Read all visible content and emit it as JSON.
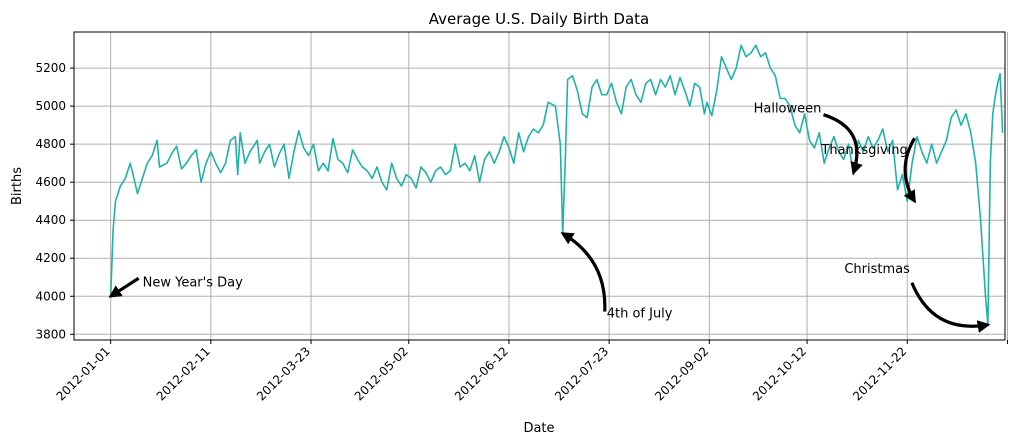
{
  "chart_data": {
    "type": "line",
    "title": "Average U.S. Daily Birth Data",
    "xlabel": "Date",
    "ylabel": "Births",
    "x_range": [
      "2011-12-17",
      "2013-01-01"
    ],
    "ylim": [
      3770,
      5390
    ],
    "grid": true,
    "line_color": "#20b2aa",
    "x_ticks": [
      "2012-01-01",
      "2012-02-11",
      "2012-03-23",
      "2012-05-02",
      "2012-06-12",
      "2012-07-23",
      "2012-09-02",
      "2012-10-12",
      "2012-11-22",
      "2013-01-02"
    ],
    "x_tick_labels": [
      "2012-01-01",
      "2012-02-11",
      "2012-03-23",
      "2012-05-02",
      "2012-06-12",
      "2012-07-23",
      "2012-09-02",
      "2012-10-12",
      "2012-11-22",
      ""
    ],
    "y_ticks": [
      3800,
      4000,
      4200,
      4400,
      4600,
      4800,
      5000,
      5200
    ],
    "y_tick_labels": [
      "3800",
      "4000",
      "4200",
      "4400",
      "4600",
      "4800",
      "5000",
      "5200"
    ],
    "series": [
      {
        "points": [
          [
            "2012-01-01",
            4000
          ],
          [
            "2012-01-02",
            4350
          ],
          [
            "2012-01-03",
            4500
          ],
          [
            "2012-01-05",
            4580
          ],
          [
            "2012-01-07",
            4620
          ],
          [
            "2012-01-09",
            4700
          ],
          [
            "2012-01-10",
            4650
          ],
          [
            "2012-01-12",
            4540
          ],
          [
            "2012-01-14",
            4620
          ],
          [
            "2012-01-16",
            4700
          ],
          [
            "2012-01-18",
            4740
          ],
          [
            "2012-01-20",
            4820
          ],
          [
            "2012-01-21",
            4680
          ],
          [
            "2012-01-24",
            4700
          ],
          [
            "2012-01-26",
            4750
          ],
          [
            "2012-01-28",
            4790
          ],
          [
            "2012-01-30",
            4670
          ],
          [
            "2012-02-01",
            4700
          ],
          [
            "2012-02-03",
            4740
          ],
          [
            "2012-02-05",
            4770
          ],
          [
            "2012-02-07",
            4600
          ],
          [
            "2012-02-09",
            4700
          ],
          [
            "2012-02-11",
            4760
          ],
          [
            "2012-02-13",
            4700
          ],
          [
            "2012-02-15",
            4650
          ],
          [
            "2012-02-17",
            4700
          ],
          [
            "2012-02-19",
            4820
          ],
          [
            "2012-02-21",
            4840
          ],
          [
            "2012-02-22",
            4640
          ],
          [
            "2012-02-23",
            4860
          ],
          [
            "2012-02-25",
            4700
          ],
          [
            "2012-02-27",
            4760
          ],
          [
            "2012-03-01",
            4820
          ],
          [
            "2012-03-02",
            4700
          ],
          [
            "2012-03-04",
            4760
          ],
          [
            "2012-03-06",
            4800
          ],
          [
            "2012-03-08",
            4680
          ],
          [
            "2012-03-10",
            4750
          ],
          [
            "2012-03-12",
            4800
          ],
          [
            "2012-03-14",
            4620
          ],
          [
            "2012-03-16",
            4760
          ],
          [
            "2012-03-18",
            4870
          ],
          [
            "2012-03-20",
            4780
          ],
          [
            "2012-03-22",
            4740
          ],
          [
            "2012-03-24",
            4800
          ],
          [
            "2012-03-26",
            4660
          ],
          [
            "2012-03-28",
            4700
          ],
          [
            "2012-03-30",
            4660
          ],
          [
            "2012-04-01",
            4830
          ],
          [
            "2012-04-03",
            4720
          ],
          [
            "2012-04-05",
            4700
          ],
          [
            "2012-04-07",
            4650
          ],
          [
            "2012-04-09",
            4770
          ],
          [
            "2012-04-11",
            4720
          ],
          [
            "2012-04-13",
            4680
          ],
          [
            "2012-04-15",
            4660
          ],
          [
            "2012-04-17",
            4620
          ],
          [
            "2012-04-19",
            4680
          ],
          [
            "2012-04-21",
            4600
          ],
          [
            "2012-04-23",
            4560
          ],
          [
            "2012-04-25",
            4700
          ],
          [
            "2012-04-27",
            4620
          ],
          [
            "2012-04-29",
            4580
          ],
          [
            "2012-05-01",
            4640
          ],
          [
            "2012-05-03",
            4620
          ],
          [
            "2012-05-05",
            4570
          ],
          [
            "2012-05-07",
            4680
          ],
          [
            "2012-05-09",
            4650
          ],
          [
            "2012-05-11",
            4600
          ],
          [
            "2012-05-13",
            4660
          ],
          [
            "2012-05-15",
            4680
          ],
          [
            "2012-05-17",
            4640
          ],
          [
            "2012-05-19",
            4660
          ],
          [
            "2012-05-21",
            4800
          ],
          [
            "2012-05-23",
            4680
          ],
          [
            "2012-05-25",
            4700
          ],
          [
            "2012-05-27",
            4660
          ],
          [
            "2012-05-29",
            4740
          ],
          [
            "2012-05-31",
            4600
          ],
          [
            "2012-06-02",
            4720
          ],
          [
            "2012-06-04",
            4760
          ],
          [
            "2012-06-06",
            4700
          ],
          [
            "2012-06-08",
            4760
          ],
          [
            "2012-06-10",
            4840
          ],
          [
            "2012-06-12",
            4780
          ],
          [
            "2012-06-14",
            4700
          ],
          [
            "2012-06-16",
            4860
          ],
          [
            "2012-06-18",
            4760
          ],
          [
            "2012-06-20",
            4840
          ],
          [
            "2012-06-22",
            4880
          ],
          [
            "2012-06-24",
            4860
          ],
          [
            "2012-06-26",
            4900
          ],
          [
            "2012-06-28",
            5020
          ],
          [
            "2012-07-01",
            5000
          ],
          [
            "2012-07-03",
            4800
          ],
          [
            "2012-07-04",
            4330
          ],
          [
            "2012-07-05",
            4700
          ],
          [
            "2012-07-06",
            5140
          ],
          [
            "2012-07-08",
            5160
          ],
          [
            "2012-07-10",
            5080
          ],
          [
            "2012-07-12",
            4960
          ],
          [
            "2012-07-14",
            4940
          ],
          [
            "2012-07-16",
            5100
          ],
          [
            "2012-07-18",
            5140
          ],
          [
            "2012-07-20",
            5060
          ],
          [
            "2012-07-22",
            5060
          ],
          [
            "2012-07-24",
            5120
          ],
          [
            "2012-07-26",
            5020
          ],
          [
            "2012-07-28",
            4960
          ],
          [
            "2012-07-30",
            5100
          ],
          [
            "2012-08-01",
            5140
          ],
          [
            "2012-08-03",
            5060
          ],
          [
            "2012-08-05",
            5020
          ],
          [
            "2012-08-07",
            5120
          ],
          [
            "2012-08-09",
            5140
          ],
          [
            "2012-08-11",
            5060
          ],
          [
            "2012-08-13",
            5140
          ],
          [
            "2012-08-15",
            5100
          ],
          [
            "2012-08-17",
            5160
          ],
          [
            "2012-08-19",
            5060
          ],
          [
            "2012-08-21",
            5150
          ],
          [
            "2012-08-23",
            5080
          ],
          [
            "2012-08-25",
            5000
          ],
          [
            "2012-08-27",
            5120
          ],
          [
            "2012-08-29",
            5100
          ],
          [
            "2012-08-31",
            4960
          ],
          [
            "2012-09-01",
            5020
          ],
          [
            "2012-09-03",
            4950
          ],
          [
            "2012-09-05",
            5080
          ],
          [
            "2012-09-07",
            5260
          ],
          [
            "2012-09-09",
            5200
          ],
          [
            "2012-09-11",
            5140
          ],
          [
            "2012-09-13",
            5200
          ],
          [
            "2012-09-15",
            5320
          ],
          [
            "2012-09-17",
            5260
          ],
          [
            "2012-09-19",
            5280
          ],
          [
            "2012-09-21",
            5320
          ],
          [
            "2012-09-23",
            5260
          ],
          [
            "2012-09-25",
            5280
          ],
          [
            "2012-09-27",
            5200
          ],
          [
            "2012-09-29",
            5160
          ],
          [
            "2012-10-01",
            5040
          ],
          [
            "2012-10-03",
            5040
          ],
          [
            "2012-10-05",
            5000
          ],
          [
            "2012-10-07",
            4900
          ],
          [
            "2012-10-09",
            4860
          ],
          [
            "2012-10-11",
            4960
          ],
          [
            "2012-10-13",
            4820
          ],
          [
            "2012-10-15",
            4780
          ],
          [
            "2012-10-17",
            4860
          ],
          [
            "2012-10-19",
            4700
          ],
          [
            "2012-10-21",
            4780
          ],
          [
            "2012-10-23",
            4840
          ],
          [
            "2012-10-25",
            4760
          ],
          [
            "2012-10-27",
            4720
          ],
          [
            "2012-10-29",
            4800
          ],
          [
            "2012-10-31",
            4640
          ],
          [
            "2012-11-02",
            4820
          ],
          [
            "2012-11-04",
            4760
          ],
          [
            "2012-11-06",
            4840
          ],
          [
            "2012-11-08",
            4780
          ],
          [
            "2012-11-10",
            4820
          ],
          [
            "2012-11-12",
            4880
          ],
          [
            "2012-11-14",
            4760
          ],
          [
            "2012-11-16",
            4820
          ],
          [
            "2012-11-18",
            4560
          ],
          [
            "2012-11-20",
            4640
          ],
          [
            "2012-11-22",
            4500
          ],
          [
            "2012-11-24",
            4700
          ],
          [
            "2012-11-26",
            4840
          ],
          [
            "2012-11-28",
            4760
          ],
          [
            "2012-11-30",
            4700
          ],
          [
            "2012-12-02",
            4800
          ],
          [
            "2012-12-04",
            4700
          ],
          [
            "2012-12-06",
            4760
          ],
          [
            "2012-12-08",
            4820
          ],
          [
            "2012-12-10",
            4940
          ],
          [
            "2012-12-12",
            4980
          ],
          [
            "2012-12-14",
            4900
          ],
          [
            "2012-12-16",
            4960
          ],
          [
            "2012-12-18",
            4860
          ],
          [
            "2012-12-20",
            4700
          ],
          [
            "2012-12-22",
            4400
          ],
          [
            "2012-12-24",
            4000
          ],
          [
            "2012-12-25",
            3850
          ],
          [
            "2012-12-26",
            4700
          ],
          [
            "2012-12-27",
            4960
          ],
          [
            "2012-12-28",
            5050
          ],
          [
            "2012-12-29",
            5120
          ],
          [
            "2012-12-30",
            5170
          ],
          [
            "2012-12-31",
            4860
          ]
        ]
      }
    ],
    "annotations": [
      {
        "text": "New Year's Day",
        "date": "2012-01-01",
        "value": 4000
      },
      {
        "text": "4th of July",
        "date": "2012-07-04",
        "value": 4330
      },
      {
        "text": "Halloween",
        "date": "2012-10-31",
        "value": 4650
      },
      {
        "text": "Thanksgiving",
        "date": "2012-11-25",
        "value": 4500
      },
      {
        "text": "Christmas",
        "date": "2012-12-25",
        "value": 3850
      }
    ]
  }
}
